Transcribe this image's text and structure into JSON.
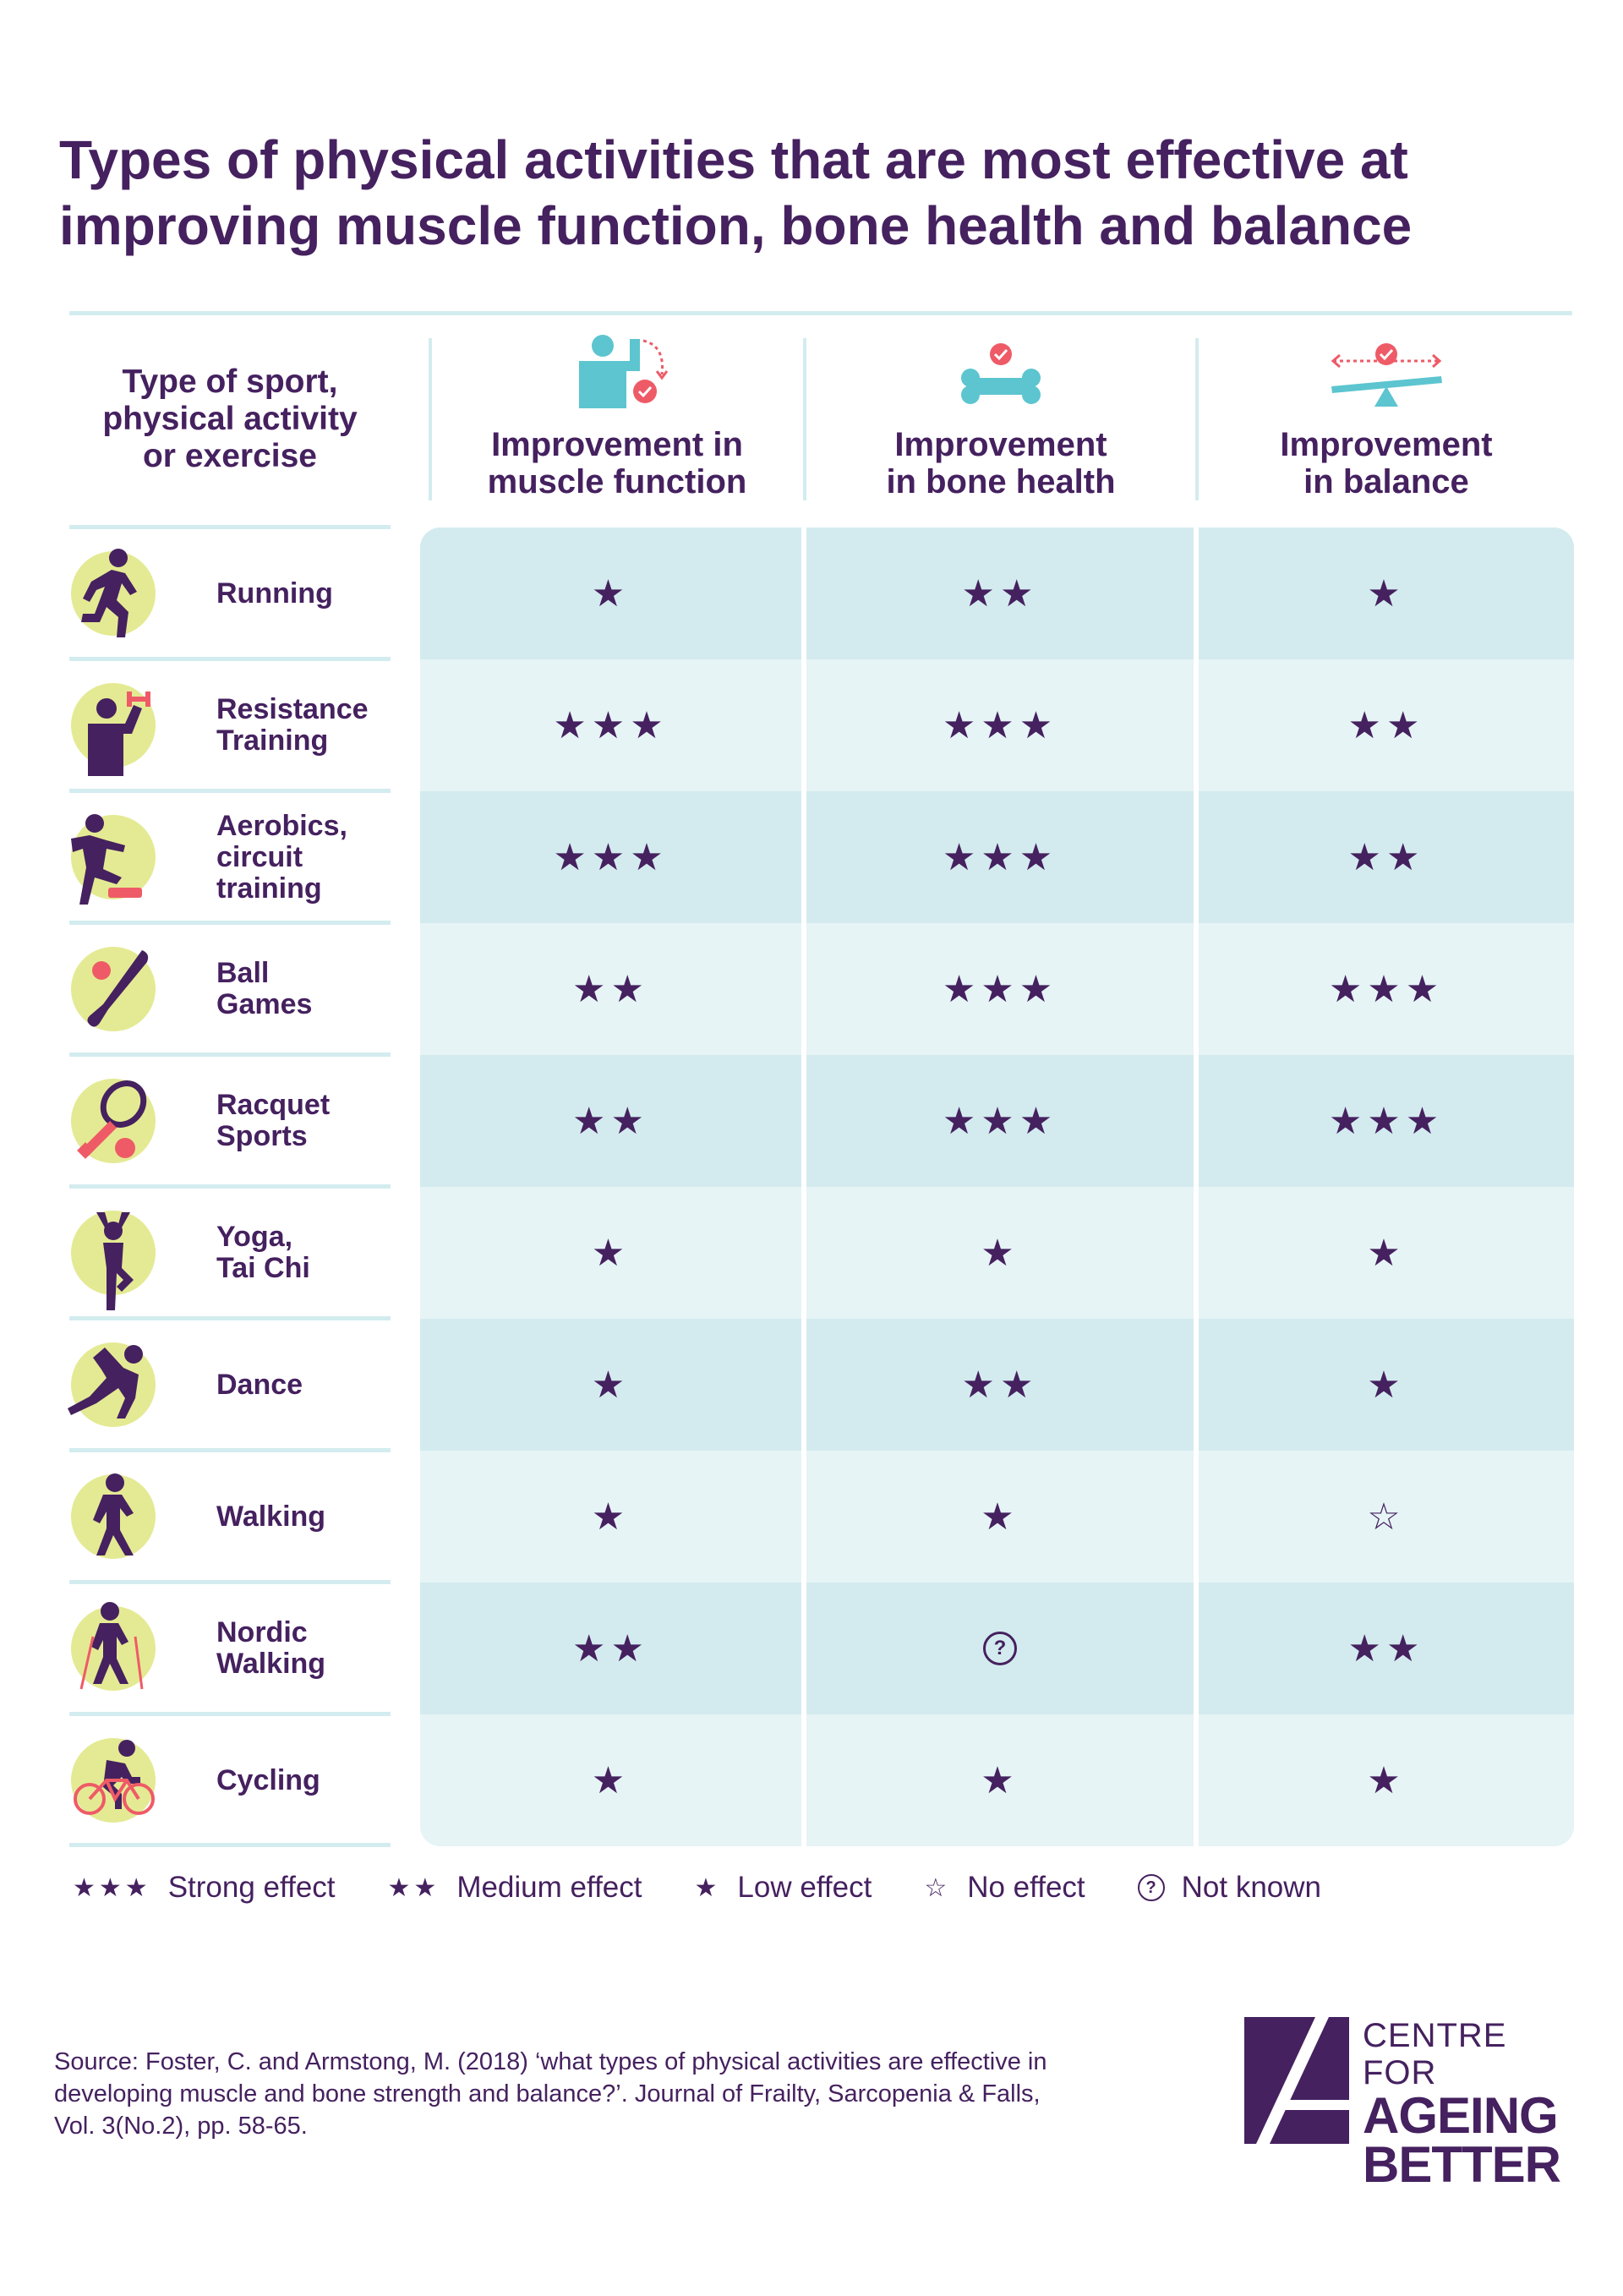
{
  "title": "Types of physical activities that are most effective at improving muscle function, bone health and balance",
  "headers": {
    "activity": "Type of sport,\nphysical activity\nor exercise",
    "muscle": "Improvement in\nmuscle function",
    "bone": "Improvement\nin bone health",
    "balance": "Improvement\nin balance"
  },
  "rows": [
    {
      "activity": "Running",
      "icon": "running-icon",
      "muscle": "★",
      "bone": "★★",
      "balance": "★"
    },
    {
      "activity": "Resistance\nTraining",
      "icon": "dumbbell-person-icon",
      "muscle": "★★★",
      "bone": "★★★",
      "balance": "★★"
    },
    {
      "activity": "Aerobics,\ncircuit\ntraining",
      "icon": "step-aerobics-icon",
      "muscle": "★★★",
      "bone": "★★★",
      "balance": "★★"
    },
    {
      "activity": "Ball\nGames",
      "icon": "bat-ball-icon",
      "muscle": "★★",
      "bone": "★★★",
      "balance": "★★★"
    },
    {
      "activity": "Racquet\nSports",
      "icon": "racquet-icon",
      "muscle": "★★",
      "bone": "★★★",
      "balance": "★★★"
    },
    {
      "activity": "Yoga,\nTai Chi",
      "icon": "yoga-icon",
      "muscle": "★",
      "bone": "★",
      "balance": "★"
    },
    {
      "activity": "Dance",
      "icon": "dance-icon",
      "muscle": "★",
      "bone": "★★",
      "balance": "★"
    },
    {
      "activity": "Walking",
      "icon": "walking-icon",
      "muscle": "★",
      "bone": "★",
      "balance": "☆"
    },
    {
      "activity": "Nordic\nWalking",
      "icon": "nordic-walking-icon",
      "muscle": "★★",
      "bone": "?",
      "balance": "★★"
    },
    {
      "activity": "Cycling",
      "icon": "cycling-icon",
      "muscle": "★",
      "bone": "★",
      "balance": "★"
    }
  ],
  "legend": [
    {
      "symbol": "★★★",
      "label": "Strong effect"
    },
    {
      "symbol": "★★",
      "label": "Medium effect"
    },
    {
      "symbol": "★",
      "label": "Low effect"
    },
    {
      "symbol": "☆",
      "label": "No effect"
    },
    {
      "symbol": "?",
      "label": "Not known"
    }
  ],
  "source": "Source: Foster, C. and Armstong, M. (2018) ‘what types of physical activities are effective in\ndeveloping muscle and bone strength and balance?’. Journal of Frailty, Sarcopenia & Falls,\nVol. 3(No.2), pp. 58-65.",
  "logo": {
    "line1": "CENTRE FOR",
    "line2": "AGEING",
    "line3": "BETTER"
  },
  "colors": {
    "purple": "#45215f",
    "teal": "#5cc5cf",
    "lime": "#e4ea93",
    "coral": "#ee5b67",
    "band_dark": "#d3ebee",
    "band_light": "#e6f4f6"
  }
}
